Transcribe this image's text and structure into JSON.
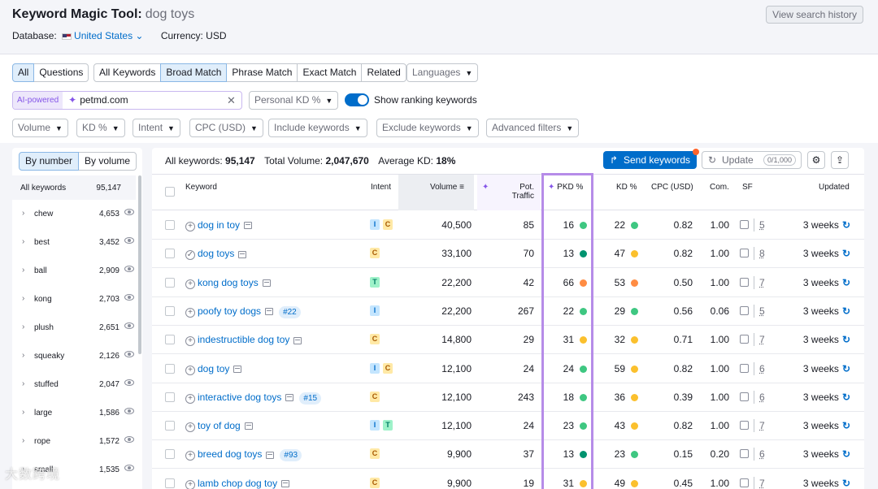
{
  "header": {
    "title": "Keyword Magic Tool:",
    "query": "dog toys",
    "database_label": "Database:",
    "database_value": "United States",
    "currency": "Currency: USD",
    "history_button": "View search history"
  },
  "filters": {
    "question_tabs": [
      "All",
      "Questions"
    ],
    "match_tabs": [
      "All Keywords",
      "Broad Match",
      "Phrase Match",
      "Exact Match",
      "Related"
    ],
    "languages": "Languages",
    "ai_tag": "AI-powered",
    "ai_domain": "petmd.com",
    "personal_kd": "Personal KD %",
    "show_ranking": "Show ranking keywords",
    "dropdowns": [
      "Volume",
      "KD %",
      "Intent",
      "CPC (USD)",
      "Include keywords",
      "Exclude keywords",
      "Advanced filters"
    ]
  },
  "sidebar": {
    "tabs": [
      "By number",
      "By volume"
    ],
    "header_label": "All keywords",
    "header_count": "95,147",
    "groups": [
      {
        "name": "chew",
        "count": "4,653"
      },
      {
        "name": "best",
        "count": "3,452"
      },
      {
        "name": "ball",
        "count": "2,909"
      },
      {
        "name": "kong",
        "count": "2,703"
      },
      {
        "name": "plush",
        "count": "2,651"
      },
      {
        "name": "squeaky",
        "count": "2,126"
      },
      {
        "name": "stuffed",
        "count": "2,047"
      },
      {
        "name": "large",
        "count": "1,586"
      },
      {
        "name": "rope",
        "count": "1,572"
      },
      {
        "name": "small",
        "count": "1,535"
      }
    ]
  },
  "summary": {
    "all_label": "All keywords:",
    "all_value": "95,147",
    "volume_label": "Total Volume:",
    "volume_value": "2,047,670",
    "kd_label": "Average KD:",
    "kd_value": "18%",
    "send_button": "Send keywords",
    "update_button": "Update",
    "update_count": "0/1,000"
  },
  "table": {
    "columns": {
      "keyword": "Keyword",
      "intent": "Intent",
      "volume": "Volume",
      "pot_traffic": "Pot. Traffic",
      "pkd": "PKD %",
      "kd": "KD %",
      "cpc": "CPC (USD)",
      "com": "Com.",
      "sf": "SF",
      "updated": "Updated"
    },
    "colors": {
      "green": "#3ec781",
      "teal": "#00936f",
      "orange": "#ff8c43",
      "yellow": "#fbc02d"
    },
    "rows": [
      {
        "keyword": "dog in toy",
        "position": "",
        "added": false,
        "intent": [
          "I",
          "C"
        ],
        "volume": "40,500",
        "pot": "85",
        "pkd": "16",
        "pkd_color": "#3ec781",
        "kd": "22",
        "kd_color": "#3ec781",
        "cpc": "0.82",
        "com": "1.00",
        "sf": "5",
        "updated": "3 weeks"
      },
      {
        "keyword": "dog toys",
        "position": "",
        "added": true,
        "intent": [
          "C"
        ],
        "volume": "33,100",
        "pot": "70",
        "pkd": "13",
        "pkd_color": "#00936f",
        "kd": "47",
        "kd_color": "#fbc02d",
        "cpc": "0.82",
        "com": "1.00",
        "sf": "8",
        "updated": "3 weeks"
      },
      {
        "keyword": "kong dog toys",
        "position": "",
        "added": false,
        "intent": [
          "T"
        ],
        "volume": "22,200",
        "pot": "42",
        "pkd": "66",
        "pkd_color": "#ff8c43",
        "kd": "53",
        "kd_color": "#ff8c43",
        "cpc": "0.50",
        "com": "1.00",
        "sf": "7",
        "updated": "3 weeks"
      },
      {
        "keyword": "poofy toy dogs",
        "position": "#22",
        "added": false,
        "intent": [
          "I"
        ],
        "volume": "22,200",
        "pot": "267",
        "pkd": "22",
        "pkd_color": "#3ec781",
        "kd": "29",
        "kd_color": "#3ec781",
        "cpc": "0.56",
        "com": "0.06",
        "sf": "5",
        "updated": "3 weeks"
      },
      {
        "keyword": "indestructible dog toy",
        "position": "",
        "added": false,
        "intent": [
          "C"
        ],
        "volume": "14,800",
        "pot": "29",
        "pkd": "31",
        "pkd_color": "#fbc02d",
        "kd": "32",
        "kd_color": "#fbc02d",
        "cpc": "0.71",
        "com": "1.00",
        "sf": "7",
        "updated": "3 weeks"
      },
      {
        "keyword": "dog toy",
        "position": "",
        "added": false,
        "intent": [
          "I",
          "C"
        ],
        "volume": "12,100",
        "pot": "24",
        "pkd": "24",
        "pkd_color": "#3ec781",
        "kd": "59",
        "kd_color": "#fbc02d",
        "cpc": "0.82",
        "com": "1.00",
        "sf": "6",
        "updated": "3 weeks"
      },
      {
        "keyword": "interactive dog toys",
        "position": "#15",
        "added": false,
        "intent": [
          "C"
        ],
        "volume": "12,100",
        "pot": "243",
        "pkd": "18",
        "pkd_color": "#3ec781",
        "kd": "36",
        "kd_color": "#fbc02d",
        "cpc": "0.39",
        "com": "1.00",
        "sf": "6",
        "updated": "3 weeks"
      },
      {
        "keyword": "toy of dog",
        "position": "",
        "added": false,
        "intent": [
          "I",
          "T"
        ],
        "volume": "12,100",
        "pot": "24",
        "pkd": "23",
        "pkd_color": "#3ec781",
        "kd": "43",
        "kd_color": "#fbc02d",
        "cpc": "0.82",
        "com": "1.00",
        "sf": "7",
        "updated": "3 weeks"
      },
      {
        "keyword": "breed dog toys",
        "position": "#93",
        "added": false,
        "intent": [
          "C"
        ],
        "volume": "9,900",
        "pot": "37",
        "pkd": "13",
        "pkd_color": "#00936f",
        "kd": "23",
        "kd_color": "#3ec781",
        "cpc": "0.15",
        "com": "0.20",
        "sf": "6",
        "updated": "3 weeks"
      },
      {
        "keyword": "lamb chop dog toy",
        "position": "",
        "added": false,
        "intent": [
          "C"
        ],
        "volume": "9,900",
        "pot": "19",
        "pkd": "31",
        "pkd_color": "#fbc02d",
        "kd": "49",
        "kd_color": "#fbc02d",
        "cpc": "0.45",
        "com": "1.00",
        "sf": "7",
        "updated": "3 weeks"
      }
    ]
  },
  "watermark": "大数跨境"
}
